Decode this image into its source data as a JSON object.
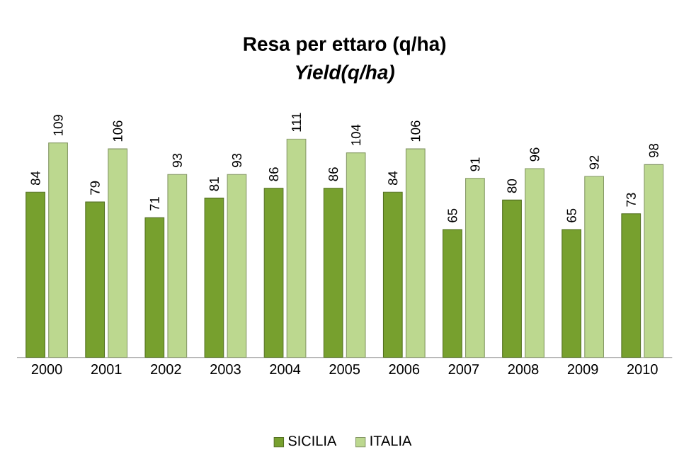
{
  "chart_data": {
    "type": "bar",
    "title": "Resa per ettaro  (q/ha)",
    "subtitle": "*Yield(q/ha)*",
    "categories": [
      "2000",
      "2001",
      "2002",
      "2003",
      "2004",
      "2005",
      "2006",
      "2007",
      "2008",
      "2009",
      "2010"
    ],
    "series": [
      {
        "name": "SICILIA",
        "color": "#77a02e",
        "values": [
          84,
          79,
          71,
          81,
          86,
          86,
          84,
          65,
          80,
          65,
          73
        ]
      },
      {
        "name": "ITALIA",
        "color": "#bcd88f",
        "values": [
          109,
          106,
          93,
          93,
          111,
          104,
          106,
          91,
          96,
          92,
          98
        ]
      }
    ],
    "data_labels": true,
    "legend": "bottom"
  }
}
